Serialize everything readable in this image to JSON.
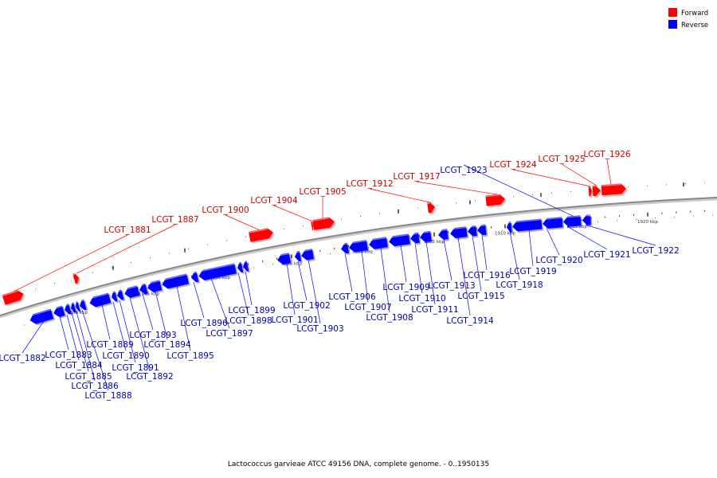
{
  "legend": [
    {
      "label": "Forward",
      "color": "#ff0000"
    },
    {
      "label": "Reverse",
      "color": "#0000ff"
    }
  ],
  "caption": "Lactococcus garvieae ATCC 49156 DNA, complete genome. - 0..1950135",
  "colors": {
    "forward": "#ff0000",
    "reverse": "#0000ff",
    "backbone": "#888888",
    "forward_label": "#cc0000",
    "reverse_label": "#0000aa"
  },
  "axis": {
    "unit": "kbp",
    "ticks": [
      {
        "kbp": 1880,
        "label": "1880 kbp"
      },
      {
        "kbp": 1885,
        "label": "1885 kbp"
      },
      {
        "kbp": 1890,
        "label": "1890 kbp"
      },
      {
        "kbp": 1895,
        "label": "1895 kbp"
      },
      {
        "kbp": 1900,
        "label": "1900 kbp"
      },
      {
        "kbp": 1905,
        "label": "1905 kbp"
      },
      {
        "kbp": 1910,
        "label": "1910 kbp"
      },
      {
        "kbp": 1915,
        "label": "1915 kbp"
      },
      {
        "kbp": 1920,
        "label": "1920 kbp"
      }
    ]
  },
  "genes": [
    {
      "name": "LCGT_1881",
      "strand": "forward"
    },
    {
      "name": "LCGT_1882",
      "strand": "reverse"
    },
    {
      "name": "LCGT_1883",
      "strand": "reverse"
    },
    {
      "name": "LCGT_1884",
      "strand": "reverse"
    },
    {
      "name": "LCGT_1885",
      "strand": "reverse"
    },
    {
      "name": "LCGT_1886",
      "strand": "reverse"
    },
    {
      "name": "LCGT_1887",
      "strand": "forward"
    },
    {
      "name": "LCGT_1888",
      "strand": "reverse"
    },
    {
      "name": "LCGT_1889",
      "strand": "reverse"
    },
    {
      "name": "LCGT_1890",
      "strand": "reverse"
    },
    {
      "name": "LCGT_1891",
      "strand": "reverse"
    },
    {
      "name": "LCGT_1892",
      "strand": "reverse"
    },
    {
      "name": "LCGT_1893",
      "strand": "reverse"
    },
    {
      "name": "LCGT_1894",
      "strand": "reverse"
    },
    {
      "name": "LCGT_1895",
      "strand": "reverse"
    },
    {
      "name": "LCGT_1896",
      "strand": "reverse"
    },
    {
      "name": "LCGT_1897",
      "strand": "reverse"
    },
    {
      "name": "LCGT_1898",
      "strand": "reverse"
    },
    {
      "name": "LCGT_1899",
      "strand": "reverse"
    },
    {
      "name": "LCGT_1900",
      "strand": "forward"
    },
    {
      "name": "LCGT_1901",
      "strand": "reverse"
    },
    {
      "name": "LCGT_1902",
      "strand": "reverse"
    },
    {
      "name": "LCGT_1903",
      "strand": "reverse"
    },
    {
      "name": "LCGT_1904",
      "strand": "forward"
    },
    {
      "name": "LCGT_1905",
      "strand": "forward"
    },
    {
      "name": "LCGT_1906",
      "strand": "reverse"
    },
    {
      "name": "LCGT_1907",
      "strand": "reverse"
    },
    {
      "name": "LCGT_1908",
      "strand": "reverse"
    },
    {
      "name": "LCGT_1909",
      "strand": "reverse"
    },
    {
      "name": "LCGT_1910",
      "strand": "reverse"
    },
    {
      "name": "LCGT_1911",
      "strand": "reverse"
    },
    {
      "name": "LCGT_1912",
      "strand": "forward"
    },
    {
      "name": "LCGT_1913",
      "strand": "reverse"
    },
    {
      "name": "LCGT_1914",
      "strand": "reverse"
    },
    {
      "name": "LCGT_1915",
      "strand": "reverse"
    },
    {
      "name": "LCGT_1916",
      "strand": "reverse"
    },
    {
      "name": "LCGT_1917",
      "strand": "forward"
    },
    {
      "name": "LCGT_1918",
      "strand": "reverse"
    },
    {
      "name": "LCGT_1919",
      "strand": "reverse"
    },
    {
      "name": "LCGT_1920",
      "strand": "reverse"
    },
    {
      "name": "LCGT_1921",
      "strand": "reverse"
    },
    {
      "name": "LCGT_1922",
      "strand": "reverse"
    },
    {
      "name": "LCGT_1923",
      "strand": "reverse"
    },
    {
      "name": "LCGT_1924",
      "strand": "forward"
    },
    {
      "name": "LCGT_1925",
      "strand": "forward"
    },
    {
      "name": "LCGT_1926",
      "strand": "forward"
    }
  ]
}
